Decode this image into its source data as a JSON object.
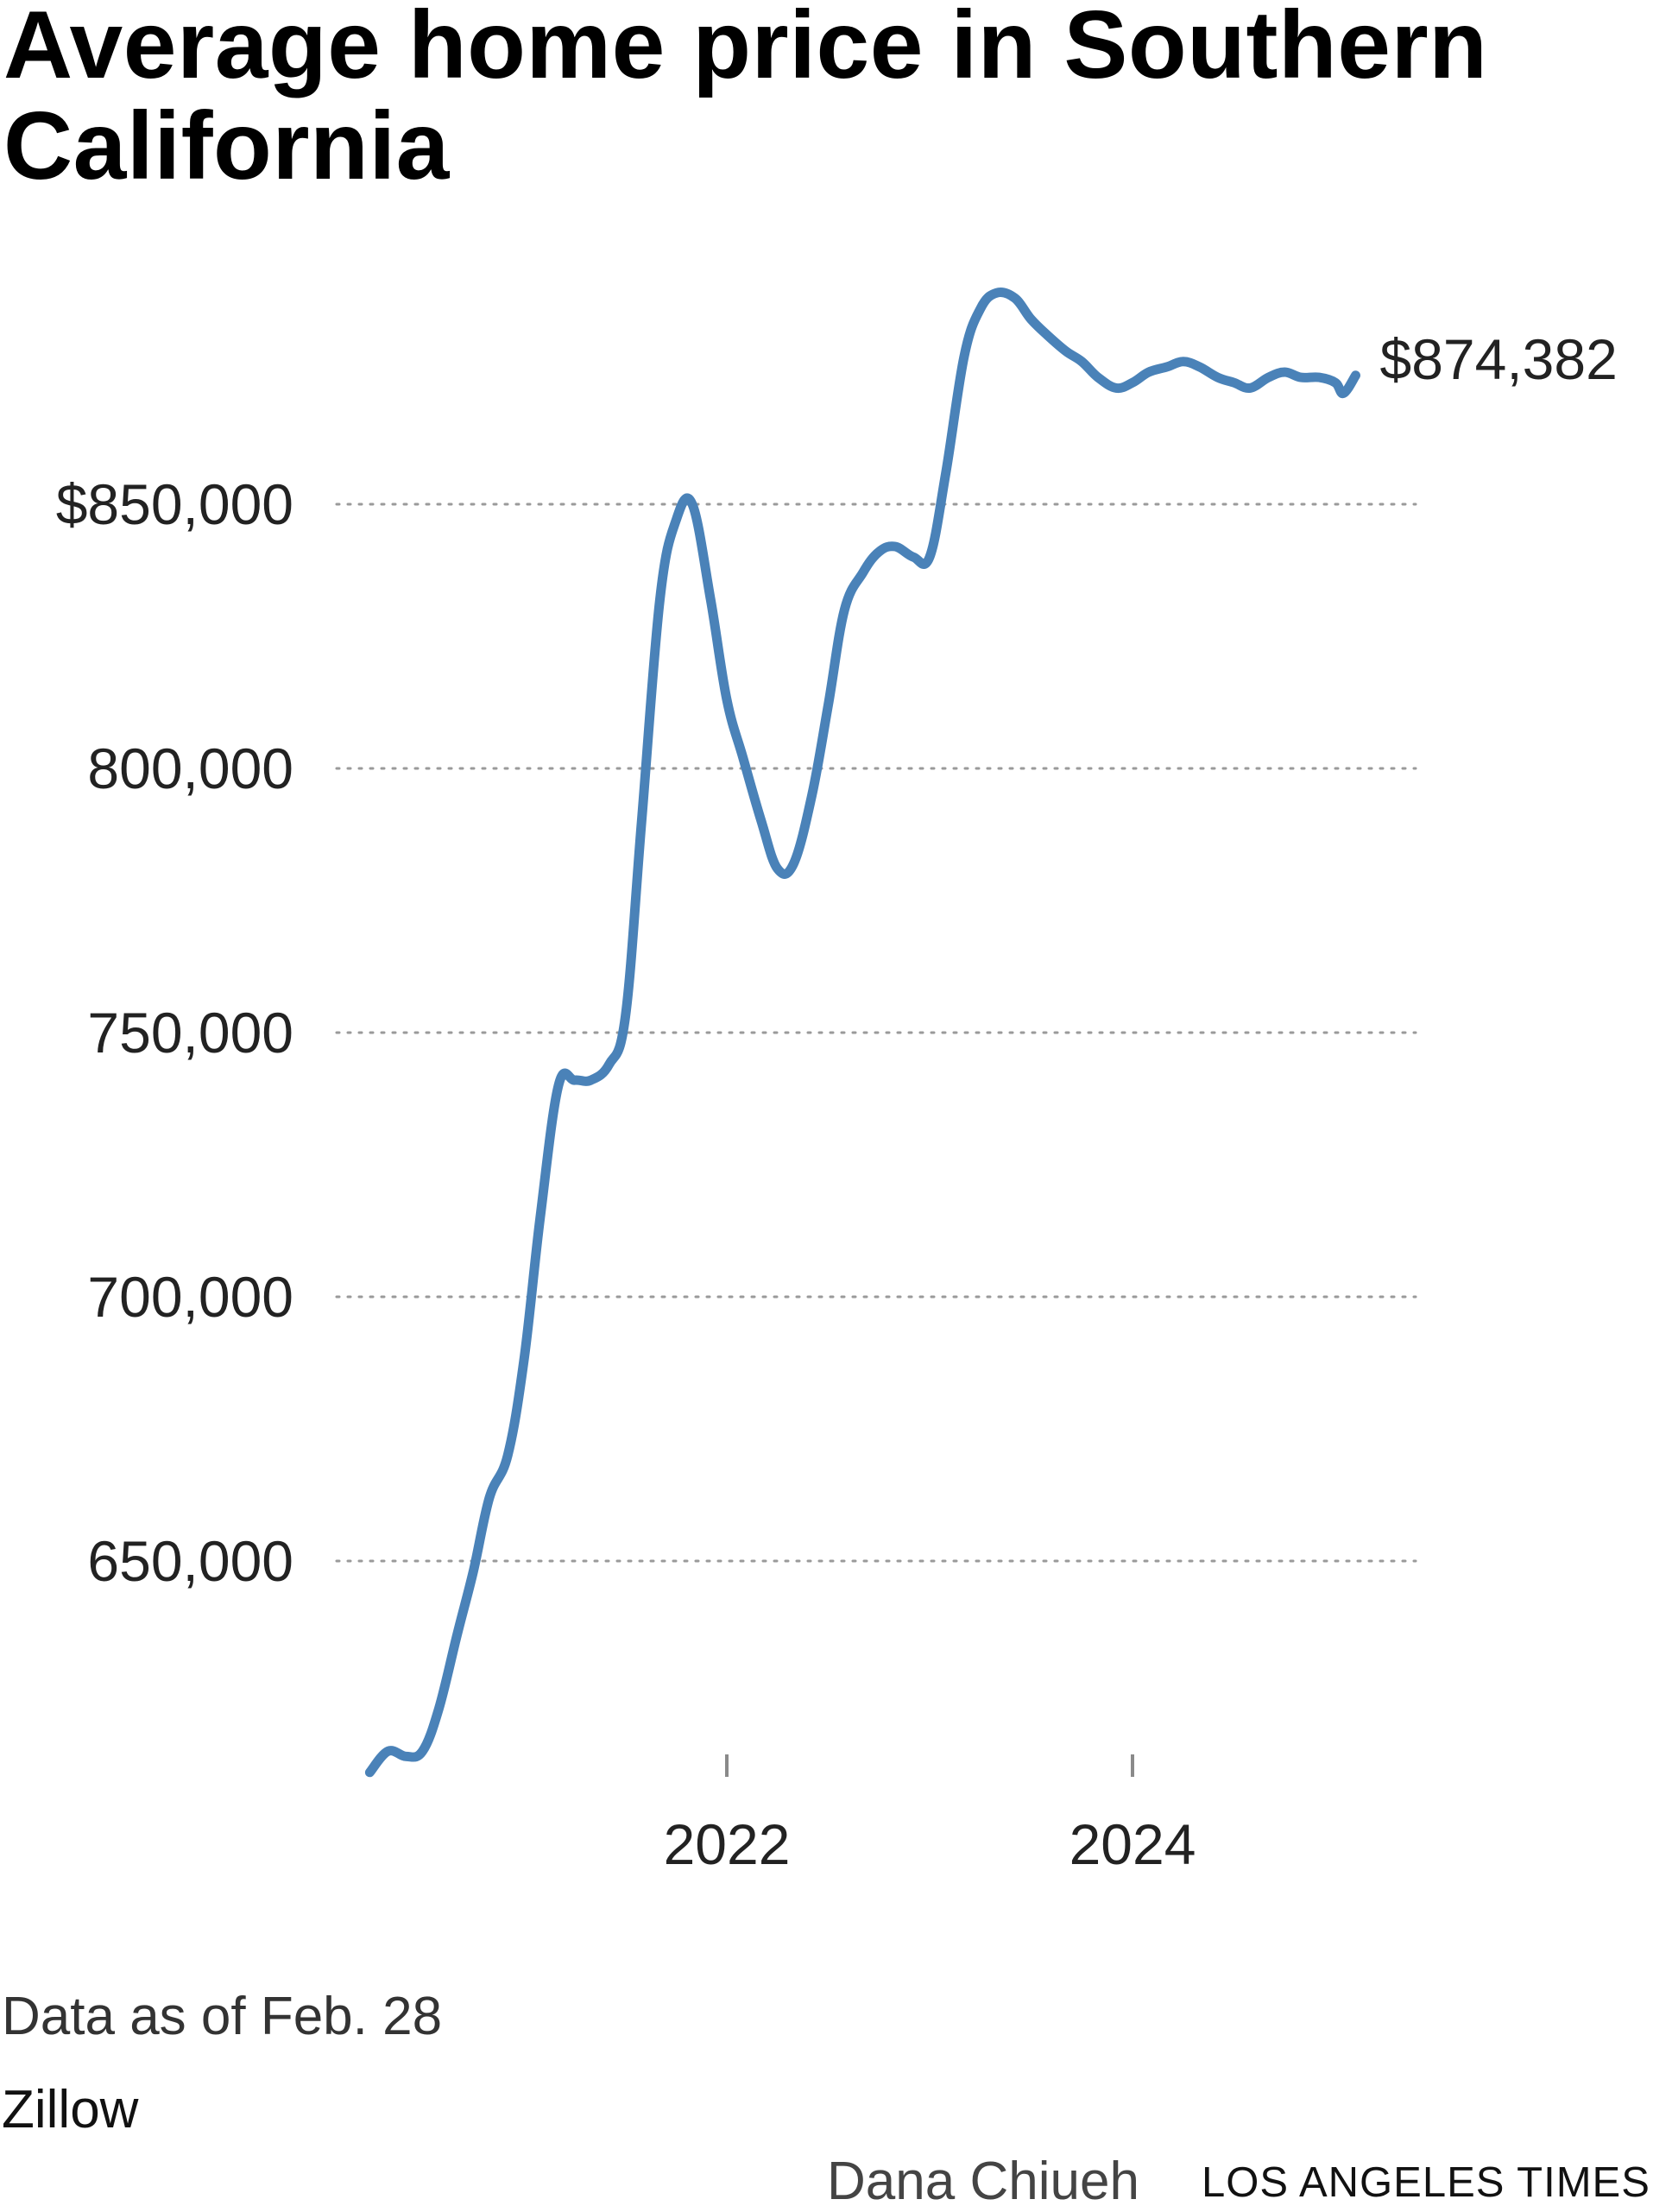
{
  "chart_data": {
    "type": "line",
    "title": "Average home price in Southern California",
    "xlabel": "",
    "ylabel": "",
    "xlim": [
      2020.2,
      2025.2
    ],
    "ylim": [
      610000,
      900000
    ],
    "grid": true,
    "y_ticks": [
      650000,
      700000,
      750000,
      800000,
      850000
    ],
    "y_tick_labels": [
      "650,000",
      "700,000",
      "750,000",
      "800,000",
      "$850,000"
    ],
    "x_ticks": [
      2022,
      2024
    ],
    "x_tick_labels": [
      "2022",
      "2024"
    ],
    "line_color": "#4a82b8",
    "series": [
      {
        "x": [
          2020.24,
          2020.33,
          2020.42,
          2020.5,
          2020.58,
          2020.67,
          2020.75,
          2020.83,
          2020.92,
          2021.0,
          2021.08,
          2021.17,
          2021.25,
          2021.33,
          2021.42,
          2021.5,
          2021.58,
          2021.67,
          2021.75,
          2021.83,
          2021.92,
          2022.0,
          2022.08,
          2022.17,
          2022.25,
          2022.33,
          2022.42,
          2022.5,
          2022.58,
          2022.67,
          2022.75,
          2022.83,
          2022.92,
          2023.0,
          2023.08,
          2023.17,
          2023.25,
          2023.33,
          2023.42,
          2023.5,
          2023.58,
          2023.67,
          2023.75,
          2023.83,
          2023.92,
          2024.0,
          2024.08,
          2024.17,
          2024.25,
          2024.33,
          2024.42,
          2024.5,
          2024.58,
          2024.67,
          2024.75,
          2024.83,
          2024.92,
          2025.0,
          2025.04,
          2025.1
        ],
        "y": [
          610000,
          614000,
          613000,
          614000,
          622000,
          636000,
          648000,
          662000,
          670000,
          688000,
          715000,
          740000,
          741000,
          741000,
          744000,
          753000,
          790000,
          832000,
          847000,
          850000,
          832000,
          813000,
          802000,
          790000,
          781000,
          782000,
          795000,
          812000,
          830000,
          837000,
          841000,
          842000,
          840000,
          840000,
          856000,
          878000,
          887000,
          890000,
          889000,
          885000,
          882000,
          879000,
          877000,
          874000,
          872000,
          873000,
          875000,
          876000,
          877000,
          876000,
          874000,
          873000,
          872000,
          874000,
          875000,
          874000,
          874000,
          873000,
          871000,
          874382
        ]
      }
    ],
    "end_label": "$874,382"
  },
  "notes": {
    "data_note": "Data as of Feb. 28",
    "source": "Zillow",
    "byline": "Dana Chiueh",
    "publisher": "LOS ANGELES TIMES"
  }
}
